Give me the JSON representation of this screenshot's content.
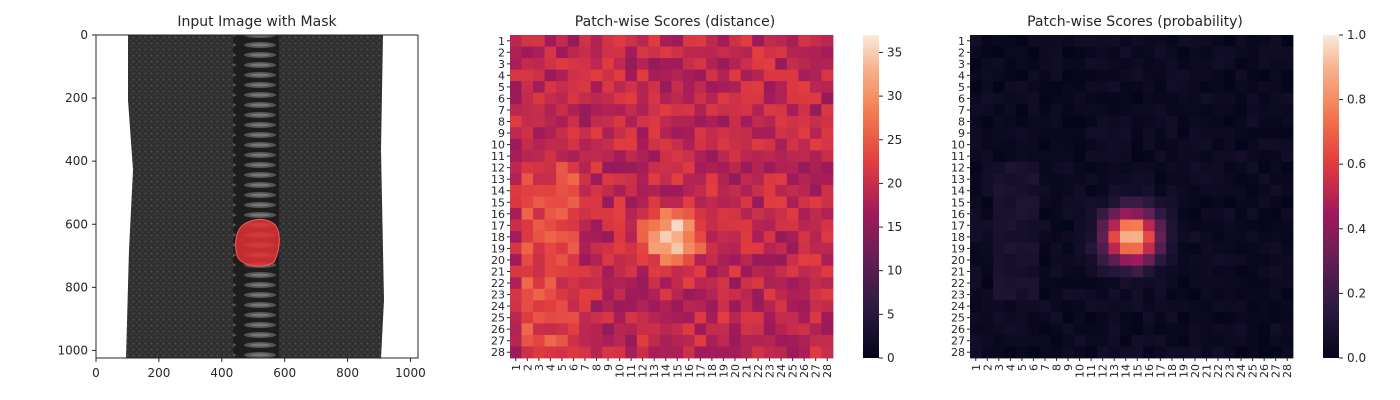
{
  "chart_data": [
    {
      "type": "image",
      "title": "Input Image with Mask",
      "xlim": [
        0,
        1024
      ],
      "ylim": [
        1024,
        0
      ],
      "xticks": [
        "0",
        "200",
        "400",
        "600",
        "800",
        "1000"
      ],
      "yticks": [
        "0",
        "200",
        "400",
        "600",
        "800",
        "1000"
      ],
      "overlay": {
        "label": "mask",
        "color": "#e03030"
      }
    },
    {
      "type": "heatmap",
      "title": "Patch-wise Scores (distance)",
      "rows": 28,
      "cols": 28,
      "colorbar": {
        "min": 0,
        "max": 37,
        "ticks": [
          "0",
          "5",
          "10",
          "15",
          "20",
          "25",
          "30",
          "35"
        ],
        "ticks_values": [
          0,
          5,
          10,
          15,
          20,
          25,
          30,
          35
        ]
      },
      "colormap": "rocket",
      "hotspot": {
        "row": 18,
        "col": 14.5,
        "peak": 36
      },
      "baseline": 19
    },
    {
      "type": "heatmap",
      "title": "Patch-wise Scores (probability)",
      "rows": 28,
      "cols": 28,
      "colorbar": {
        "min": 0,
        "max": 1,
        "ticks": [
          "0.0",
          "0.2",
          "0.4",
          "0.6",
          "0.8",
          "1.0"
        ],
        "ticks_values": [
          0,
          0.2,
          0.4,
          0.6,
          0.8,
          1.0
        ]
      },
      "colormap": "rocket",
      "hotspot": {
        "row": 18,
        "col": 14.5,
        "peak": 0.9
      },
      "baseline": 0.01
    }
  ]
}
